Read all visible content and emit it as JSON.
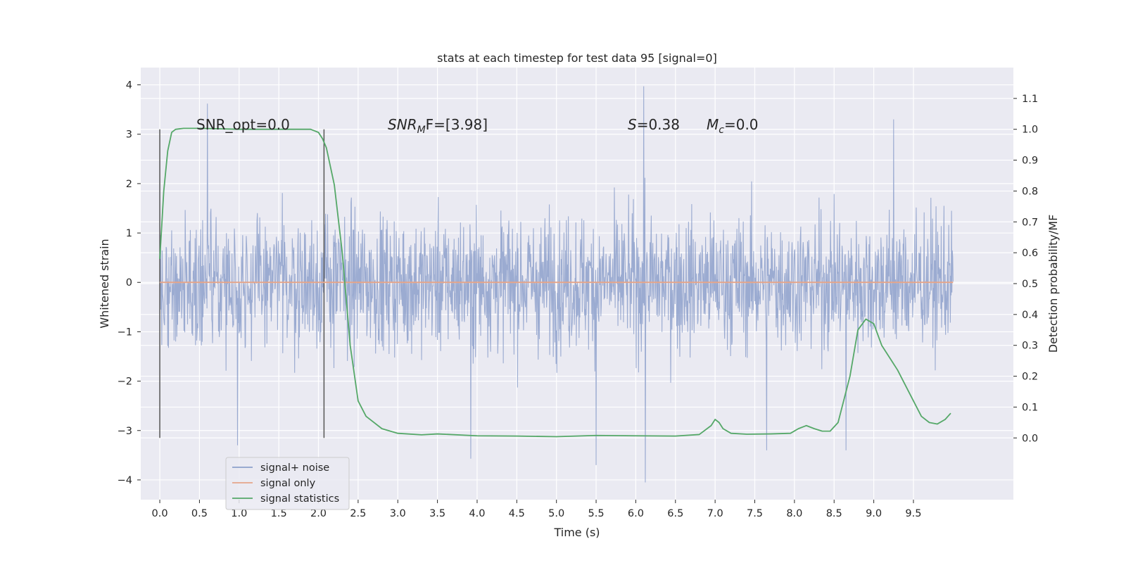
{
  "chart_data": {
    "type": "line",
    "title": "stats at each timestep for test data 95 [signal=0]",
    "xlabel": "Time (s)",
    "ylabel_left": "Whitened strain",
    "ylabel_right": "Detection probability/MF",
    "x_ticks": [
      "0.0",
      "0.5",
      "1.0",
      "1.5",
      "2.0",
      "2.5",
      "3.0",
      "3.5",
      "4.0",
      "4.5",
      "5.0",
      "5.5",
      "6.0",
      "6.5",
      "7.0",
      "7.5",
      "8.0",
      "8.5",
      "9.0",
      "9.5"
    ],
    "y_left_ticks": [
      "4",
      "3",
      "2",
      "1",
      "0",
      "−1",
      "−2",
      "−3",
      "−4"
    ],
    "y_right_ticks": [
      "1.1",
      "1.0",
      "0.9",
      "0.8",
      "0.7",
      "0.6",
      "0.5",
      "0.4",
      "0.3",
      "0.2",
      "0.1",
      "0.0"
    ],
    "xlim": [
      -0.24,
      10.76
    ],
    "ylim_left": [
      -4.4,
      4.35
    ],
    "ylim_right": [
      -0.2,
      1.2
    ],
    "grid": true,
    "legend_position": "lower left",
    "annotations": {
      "snr_opt": "SNR_opt=0.0",
      "snr_mf_main": "SNR",
      "snr_mf_sub": "M",
      "snr_mf_rest": "F=[3.98]",
      "s_italic": "S",
      "s_rest": "=0.38",
      "mc_italic": "M",
      "mc_sub": "c",
      "mc_rest": "=0.0"
    },
    "window_markers_x": [
      0.0,
      2.07
    ],
    "series": [
      {
        "name": "signal+ noise",
        "axis": "left",
        "color": "#8da0cb",
        "description_range": [
          -4.0,
          4.0
        ],
        "peaks": [
          {
            "x": 0.6,
            "y": 3.62
          },
          {
            "x": 6.1,
            "y": 3.97
          },
          {
            "x": 9.25,
            "y": 3.3
          },
          {
            "x": 6.12,
            "y": -4.05
          },
          {
            "x": 3.92,
            "y": -3.57
          },
          {
            "x": 5.5,
            "y": -3.7
          },
          {
            "x": 8.65,
            "y": -3.4
          },
          {
            "x": 0.98,
            "y": -3.3
          },
          {
            "x": 7.65,
            "y": -3.4
          }
        ]
      },
      {
        "name": "signal only",
        "axis": "left",
        "color": "#e5a58a",
        "x": [
          0.0,
          10.0
        ],
        "y": [
          0.0,
          0.0
        ]
      },
      {
        "name": "signal statistics",
        "axis": "right",
        "color": "#55a868",
        "x": [
          0.0,
          0.05,
          0.1,
          0.15,
          0.2,
          0.3,
          0.5,
          1.0,
          1.5,
          1.9,
          2.0,
          2.05,
          2.1,
          2.2,
          2.3,
          2.4,
          2.5,
          2.6,
          2.8,
          3.0,
          3.3,
          3.5,
          4.0,
          4.5,
          5.0,
          5.5,
          6.0,
          6.5,
          6.8,
          6.95,
          7.0,
          7.05,
          7.1,
          7.2,
          7.4,
          7.7,
          7.95,
          8.05,
          8.15,
          8.25,
          8.35,
          8.45,
          8.55,
          8.7,
          8.8,
          8.9,
          9.0,
          9.1,
          9.3,
          9.5,
          9.6,
          9.7,
          9.8,
          9.9,
          9.97
        ],
        "y": [
          0.58,
          0.8,
          0.93,
          0.99,
          1.0,
          1.003,
          1.003,
          1.0,
          1.0,
          1.0,
          0.99,
          0.97,
          0.94,
          0.82,
          0.6,
          0.3,
          0.12,
          0.07,
          0.03,
          0.015,
          0.01,
          0.013,
          0.007,
          0.006,
          0.004,
          0.008,
          0.007,
          0.006,
          0.011,
          0.04,
          0.06,
          0.05,
          0.03,
          0.015,
          0.012,
          0.013,
          0.015,
          0.03,
          0.04,
          0.03,
          0.022,
          0.022,
          0.05,
          0.2,
          0.35,
          0.385,
          0.37,
          0.3,
          0.22,
          0.12,
          0.07,
          0.05,
          0.045,
          0.06,
          0.08
        ]
      }
    ]
  }
}
